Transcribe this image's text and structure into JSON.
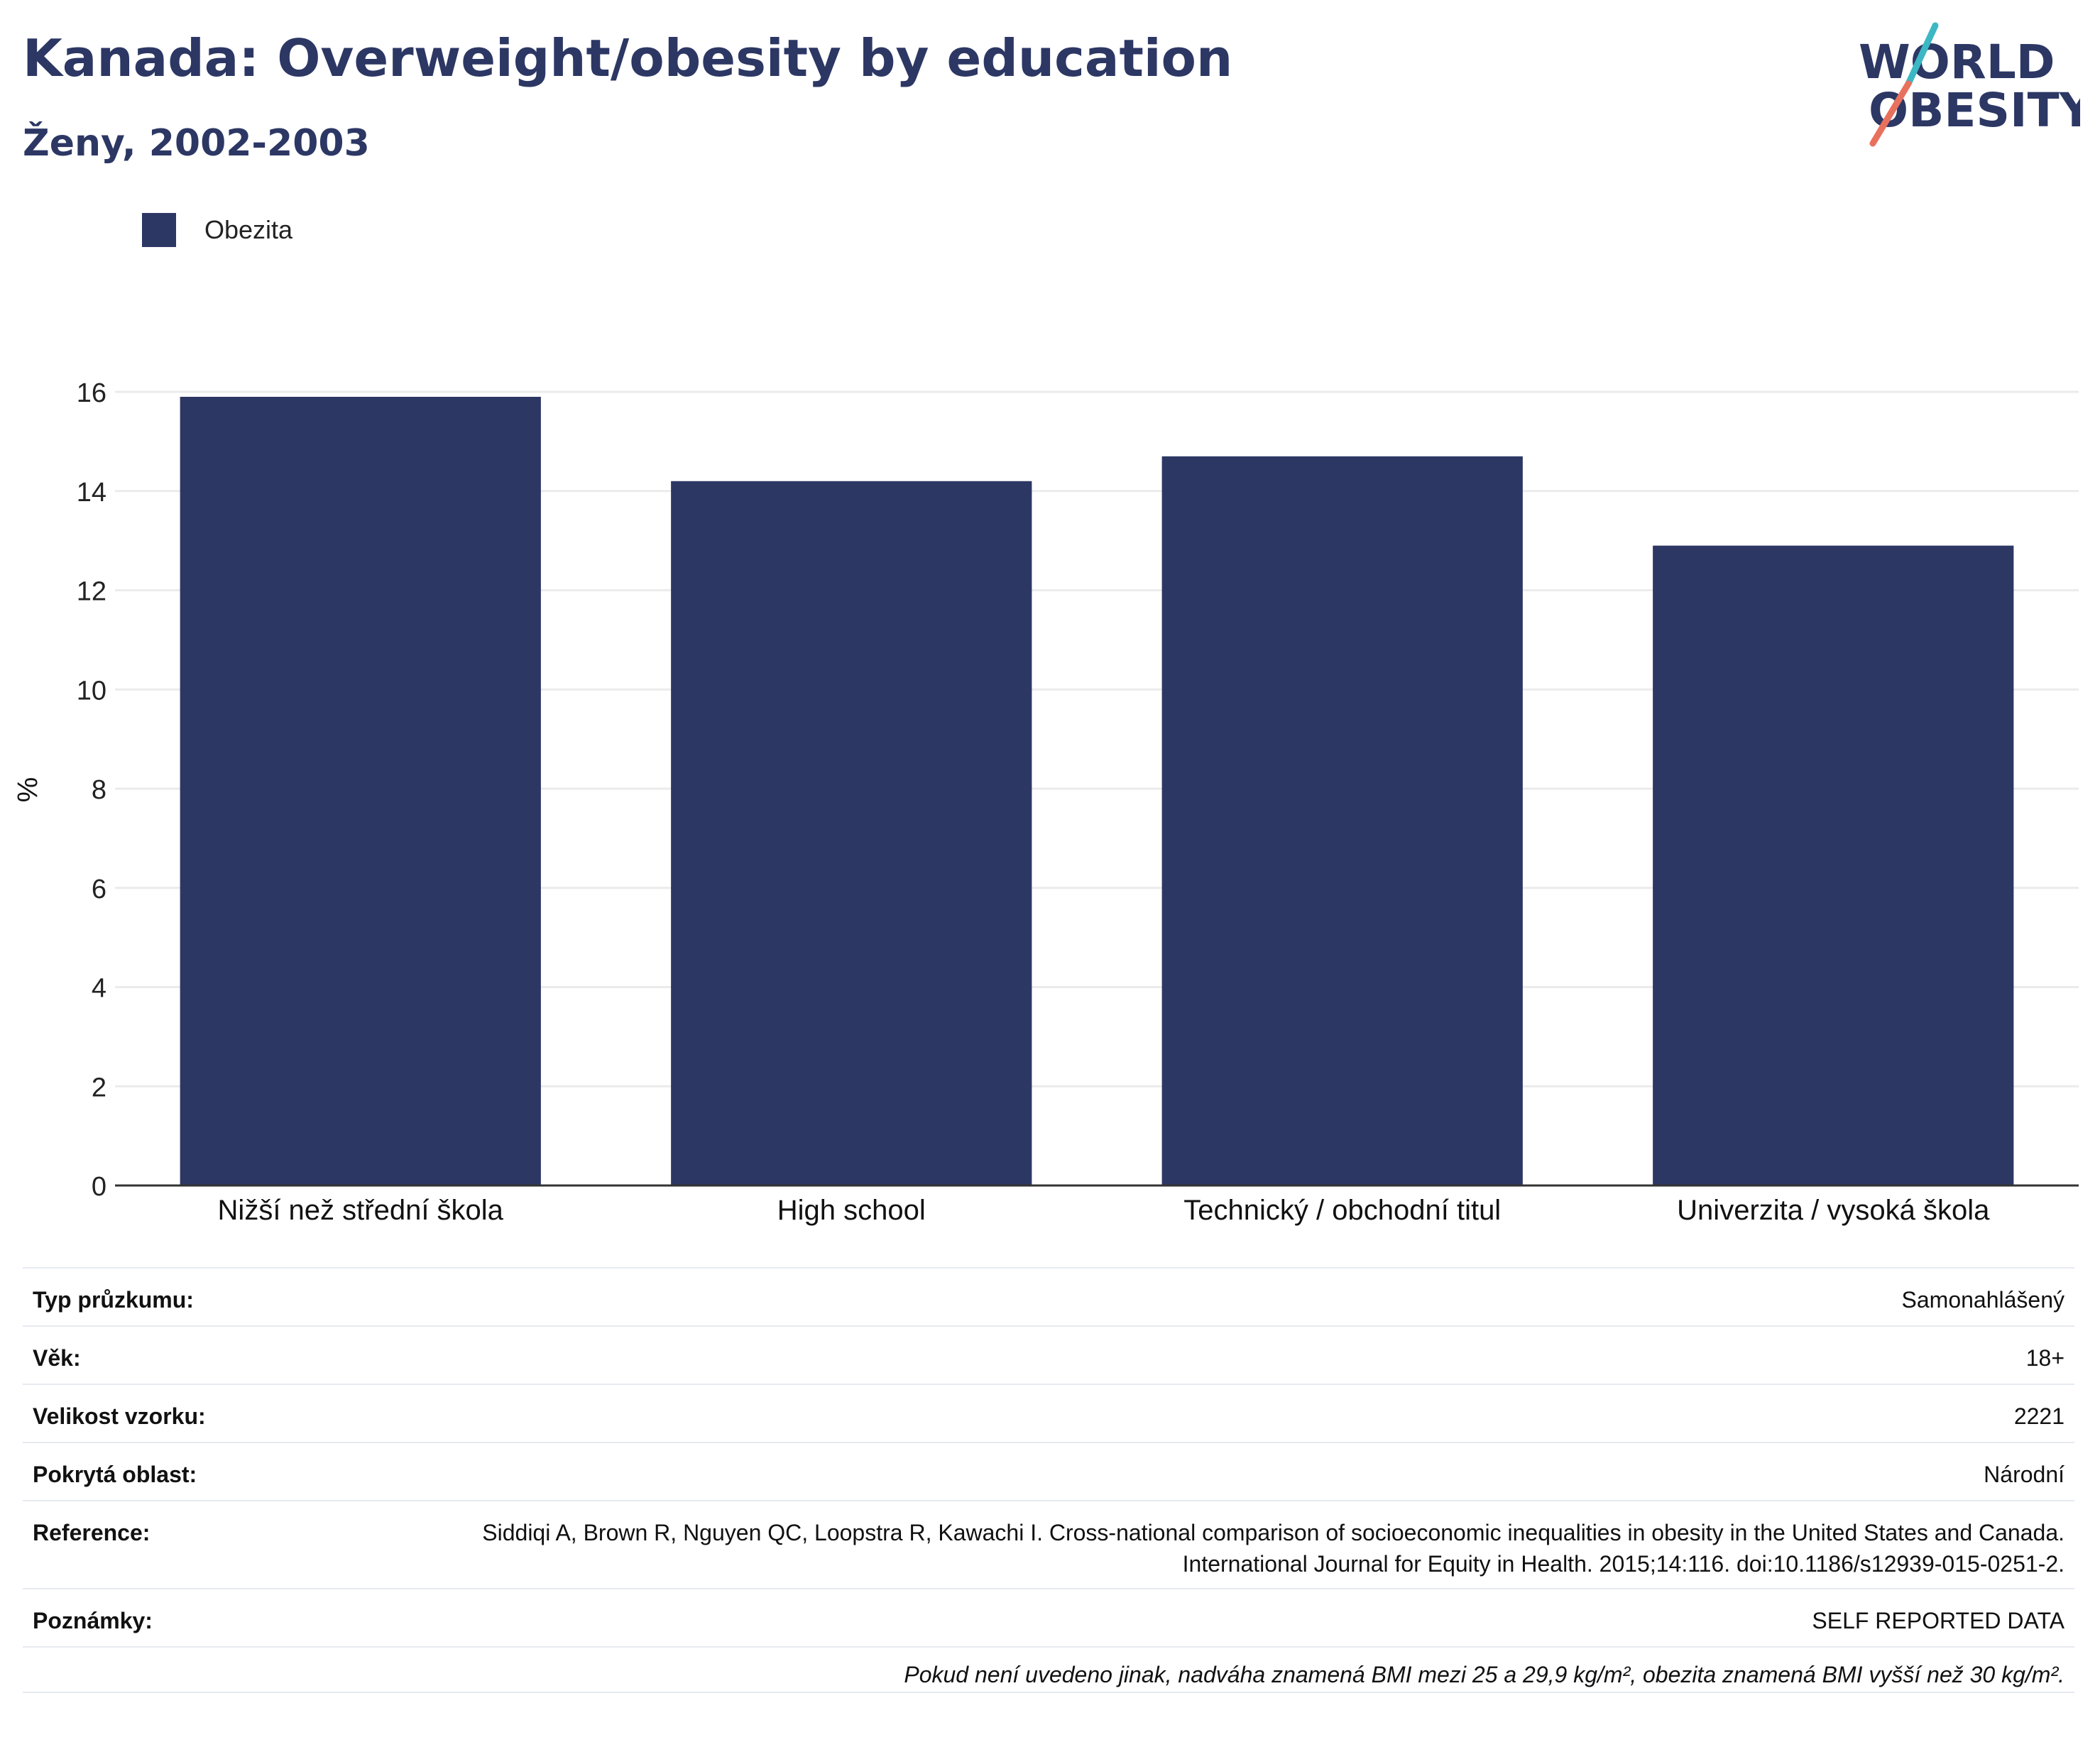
{
  "header": {
    "title": "Kanada: Overweight/obesity by education",
    "subtitle": "Ženy, 2002-2003"
  },
  "logo": {
    "line1": "WORLD",
    "line2": "OBESITY"
  },
  "legend": {
    "label": "Obezita",
    "color": "#2c3764"
  },
  "chart_data": {
    "type": "bar",
    "categories": [
      "Nižší než střední škola",
      "High school",
      "Technický / obchodní titul",
      "Univerzita / vysoká škola"
    ],
    "series": [
      {
        "name": "Obezita",
        "values": [
          15.9,
          14.2,
          14.7,
          12.9
        ]
      }
    ],
    "ylabel": "%",
    "ylim": [
      0,
      16
    ],
    "yticks": [
      0,
      2,
      4,
      6,
      8,
      10,
      12,
      14,
      16
    ],
    "grid": true,
    "legend_position": "top-left",
    "bar_color": "#2c3764"
  },
  "info": {
    "rows": [
      {
        "label": "Typ průzkumu:",
        "value": "Samonahlášený"
      },
      {
        "label": "Věk:",
        "value": "18+"
      },
      {
        "label": "Velikost vzorku:",
        "value": "2221"
      },
      {
        "label": "Pokrytá oblast:",
        "value": "Národní"
      },
      {
        "label": "Reference:",
        "value": "Siddiqi A, Brown R, Nguyen QC, Loopstra R, Kawachi I. Cross-national comparison of socioeconomic inequalities in obesity in the United States and Canada. International Journal for Equity in Health. 2015;14:116. doi:10.1186/s12939-015-0251-2."
      },
      {
        "label": "Poznámky:",
        "value": "SELF REPORTED DATA"
      }
    ],
    "footnote": "Pokud není uvedeno jinak, nadváha znamená BMI mezi 25 a 29,9 kg/m², obezita znamená BMI vyšší než 30 kg/m²."
  }
}
